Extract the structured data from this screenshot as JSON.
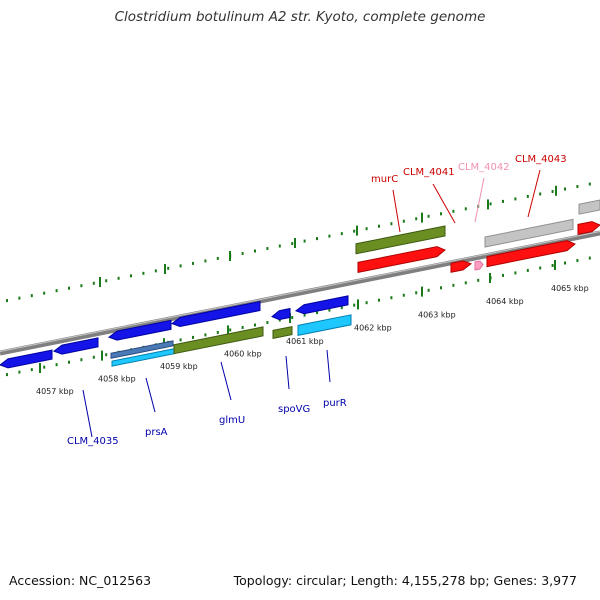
{
  "title": "Clostridium botulinum A2 str. Kyoto, complete genome",
  "footer": {
    "accession": "Accession: NC_012563",
    "summary": "Topology: circular; Length: 4,155,278 bp; Genes: 3,977"
  },
  "colors": {
    "backbone": "#7f7f7f",
    "tick": "#1a7a1a",
    "forward_label": "#cc0000",
    "reverse_label": "#0000aa",
    "pseudo_label": "#f090b0"
  },
  "scale": {
    "ticks": [
      {
        "label": "4057 kbp"
      },
      {
        "label": "4058 kbp"
      },
      {
        "label": "4059 kbp"
      },
      {
        "label": "4060 kbp"
      },
      {
        "label": "4061 kbp"
      },
      {
        "label": "4062 kbp"
      },
      {
        "label": "4063 kbp"
      },
      {
        "label": "4064 kbp"
      },
      {
        "label": "4065 kbp"
      }
    ]
  },
  "features": [
    {
      "label": "CLM_4035",
      "strand": "reverse"
    },
    {
      "label": "prsA",
      "strand": "reverse"
    },
    {
      "label": "glmU",
      "strand": "reverse"
    },
    {
      "label": "spoVG",
      "strand": "reverse"
    },
    {
      "label": "purR",
      "strand": "reverse"
    },
    {
      "label": "murC",
      "strand": "forward"
    },
    {
      "label": "CLM_4041",
      "strand": "forward"
    },
    {
      "label": "CLM_4042",
      "strand": "forward",
      "pseudo": true
    },
    {
      "label": "CLM_4043",
      "strand": "forward"
    }
  ]
}
